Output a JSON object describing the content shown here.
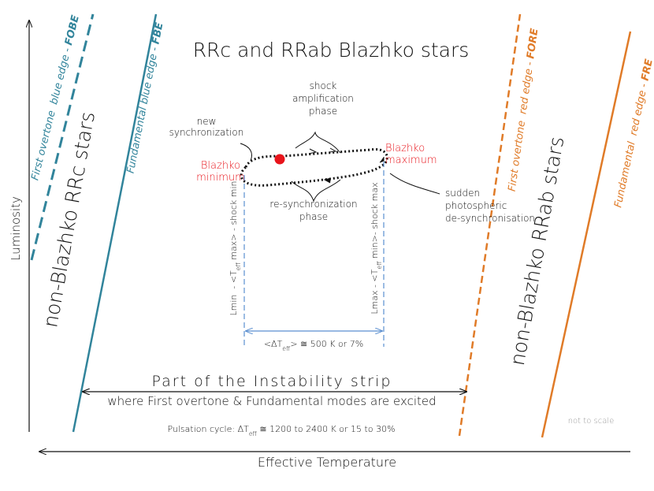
{
  "title": "RRc and RRab Blazhko stars",
  "axes": {
    "y": "Luminosity",
    "x": "Effective Temperature"
  },
  "edges": [
    {
      "label": "First overtone  blue edge -",
      "abbr": "FOBE"
    },
    {
      "label": "Fundamental blue edge -",
      "abbr": "FBE"
    },
    {
      "label": "First overtone  red edge -",
      "abbr": "FORE"
    },
    {
      "label": "Fundamental  red edge -",
      "abbr": "FRE"
    }
  ],
  "regions": [
    "non-Blazhko RRc stars",
    "non-Blazhko RRab stars"
  ],
  "annotations": {
    "new_synchronization": [
      "new",
      "synchronization"
    ],
    "shock_amplification": [
      "shock",
      "amplification",
      "phase"
    ],
    "blazhko_minimum": [
      "Blazhko",
      "minimum"
    ],
    "blazhko_maximum": [
      "Blazhko",
      "maximum"
    ],
    "resynchronization": [
      "re-synchronization",
      "phase"
    ],
    "desynchronisation": [
      "sudden",
      "photospheric",
      "de-synchronisation"
    ]
  },
  "lmin_label": {
    "pre": "Lmin  - <T",
    "sub": "eff",
    "post": " max> - shock min"
  },
  "lmax_label": {
    "pre": "Lmax - <T",
    "sub": "eff",
    "post": " min>- shock max"
  },
  "delta_teff": {
    "pre": "<ΔT",
    "sub": "eff",
    "post": "> ≅ 500 K or 7%"
  },
  "strip": {
    "title": "Part of the Instability strip",
    "subtitle": "where First overtone & Fundamental modes are excited"
  },
  "pulsation_cycle": {
    "pre": "Pulsation cycle: ΔT",
    "sub": "eff",
    "post": " ≅ 1200 to 2400 K or 15 to 30%"
  },
  "note": "not to scale"
}
